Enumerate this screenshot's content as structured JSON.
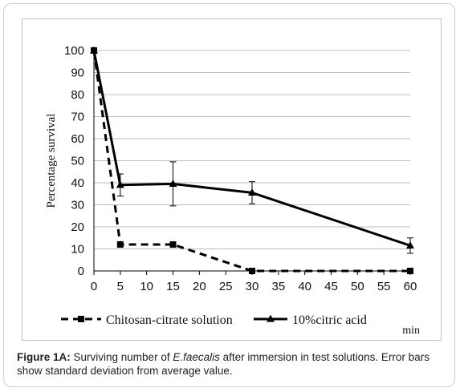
{
  "chart_data": {
    "type": "line",
    "title": "",
    "xlabel": "min",
    "ylabel": "Percentage survival",
    "xlim": [
      0,
      60
    ],
    "ylim": [
      0,
      100
    ],
    "xticks": [
      0,
      5,
      10,
      15,
      20,
      25,
      30,
      35,
      40,
      45,
      50,
      55,
      60
    ],
    "yticks": [
      0,
      10,
      20,
      30,
      40,
      50,
      60,
      70,
      80,
      90,
      100
    ],
    "grid": "horizontal",
    "legend_position": "bottom",
    "series": [
      {
        "name": "Chitosan-citrate solution",
        "color": "#000000",
        "line_style": "dashed",
        "marker": "square",
        "points": [
          {
            "x": 0,
            "y": 100,
            "err": 0
          },
          {
            "x": 5,
            "y": 12,
            "err": 0
          },
          {
            "x": 15,
            "y": 12,
            "err": 1
          },
          {
            "x": 30,
            "y": 0,
            "err": 0
          },
          {
            "x": 60,
            "y": 0,
            "err": 0
          }
        ]
      },
      {
        "name": "10%citric acid",
        "color": "#000000",
        "line_style": "solid",
        "marker": "triangle",
        "points": [
          {
            "x": 0,
            "y": 100,
            "err": 0
          },
          {
            "x": 5,
            "y": 39,
            "err": 5
          },
          {
            "x": 15,
            "y": 39.5,
            "err": 10
          },
          {
            "x": 30,
            "y": 35.5,
            "err": 5
          },
          {
            "x": 60,
            "y": 11.5,
            "err": 3.5
          }
        ]
      }
    ]
  },
  "caption": {
    "label": "Figure 1A:",
    "text_before": " Surviving number of ",
    "species": "E.faecalis",
    "text_after": " after immersion in test solutions. Error bars show standard deviation from average value."
  }
}
